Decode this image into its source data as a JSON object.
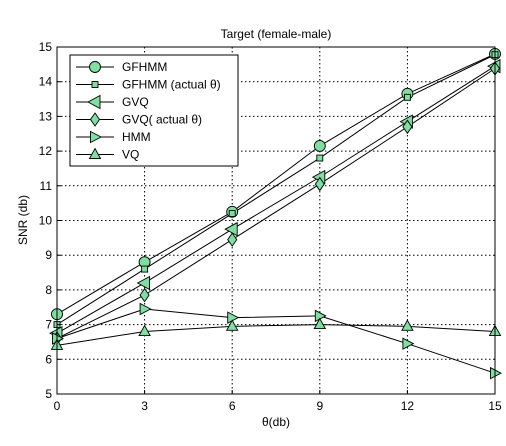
{
  "chart_data": {
    "type": "line",
    "title": "Target (female-male)",
    "xlabel": "θ(db)",
    "ylabel": "SNR (db)",
    "x": [
      0,
      3,
      6,
      9,
      12,
      15
    ],
    "xlim": [
      0,
      15
    ],
    "ylim": [
      5,
      15
    ],
    "xticks": [
      0,
      3,
      6,
      9,
      12,
      15
    ],
    "yticks": [
      5,
      6,
      7,
      8,
      9,
      10,
      11,
      12,
      13,
      14,
      15
    ],
    "grid": true,
    "legend_position": "top-left",
    "marker_fill": "#7ee0a0",
    "series": [
      {
        "name": "GFHMM",
        "marker": "circle",
        "values": [
          7.3,
          8.8,
          10.25,
          12.15,
          13.65,
          14.8
        ]
      },
      {
        "name": "GFHMM (actual θ)",
        "marker": "square",
        "values": [
          7.0,
          8.6,
          10.2,
          11.8,
          13.55,
          14.78
        ]
      },
      {
        "name": "GVQ",
        "marker": "triangle-left",
        "values": [
          6.75,
          8.2,
          9.75,
          11.25,
          12.85,
          14.45
        ]
      },
      {
        "name": "GVQ( actual θ)",
        "marker": "diamond",
        "values": [
          6.6,
          7.85,
          9.45,
          11.05,
          12.7,
          14.38
        ]
      },
      {
        "name": "HMM",
        "marker": "triangle-right",
        "values": [
          6.6,
          7.45,
          7.2,
          7.25,
          6.45,
          5.6
        ]
      },
      {
        "name": "VQ",
        "marker": "triangle-up",
        "values": [
          6.4,
          6.8,
          6.95,
          7.0,
          6.95,
          6.8
        ]
      }
    ]
  }
}
